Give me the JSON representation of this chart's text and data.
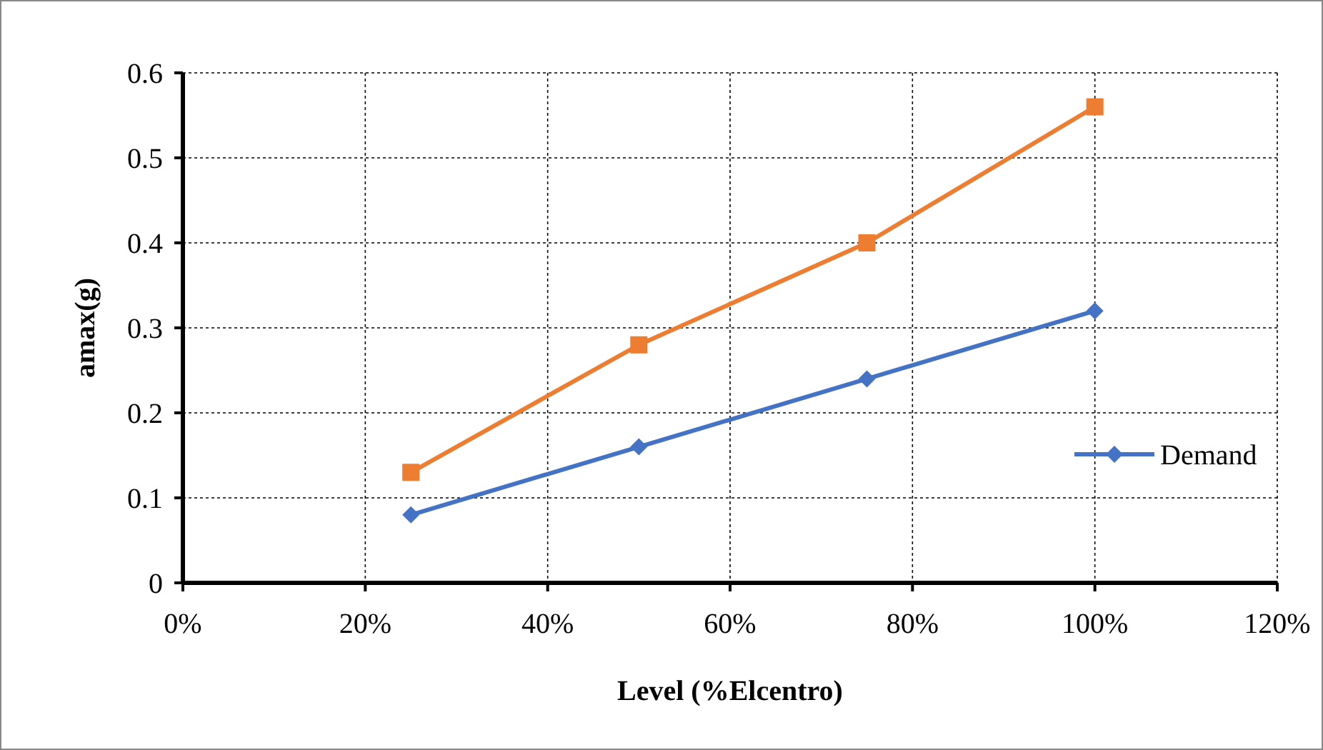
{
  "chart_data": {
    "type": "line",
    "xlabel": "Level (%Elcentro)",
    "ylabel": "amax(g)",
    "x": [
      25,
      50,
      75,
      100
    ],
    "series": [
      {
        "name": "Demand",
        "color": "#4472c4",
        "marker": "diamond",
        "values": [
          0.08,
          0.16,
          0.24,
          0.32
        ]
      },
      {
        "color": "#ed7d31",
        "marker": "square",
        "values": [
          0.13,
          0.28,
          0.4,
          0.56
        ]
      }
    ],
    "xlim": [
      0,
      120
    ],
    "xticks": [
      {
        "value": 0,
        "label": "0%"
      },
      {
        "value": 20,
        "label": "20%"
      },
      {
        "value": 40,
        "label": "40%"
      },
      {
        "value": 60,
        "label": "60%"
      },
      {
        "value": 80,
        "label": "80%"
      },
      {
        "value": 100,
        "label": "100%"
      },
      {
        "value": 120,
        "label": "120%"
      }
    ],
    "ylim": [
      0,
      0.6
    ],
    "yticks": [
      0,
      0.1,
      0.2,
      0.3,
      0.4,
      0.5,
      0.6
    ],
    "grid": true,
    "legend": "right"
  }
}
